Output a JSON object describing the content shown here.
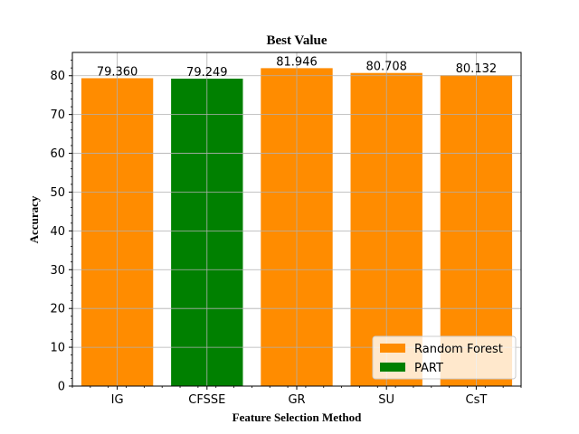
{
  "chart_data": {
    "type": "bar",
    "title": "Best Value",
    "xlabel": "Feature Selection Method",
    "ylabel": "Accuracy",
    "categories": [
      "IG",
      "CFSSE",
      "GR",
      "SU",
      "CsT"
    ],
    "values": [
      79.36,
      79.249,
      81.946,
      80.708,
      80.132
    ],
    "value_labels": [
      "79.360",
      "79.249",
      "81.946",
      "80.708",
      "80.132"
    ],
    "bar_series": [
      "Random Forest",
      "PART",
      "Random Forest",
      "Random Forest",
      "Random Forest"
    ],
    "series": [
      {
        "name": "Random Forest",
        "color": "#ff8c00"
      },
      {
        "name": "PART",
        "color": "#008000"
      }
    ],
    "ylim": [
      0,
      86.0
    ],
    "yticks": [
      0,
      10,
      20,
      30,
      40,
      50,
      60,
      70,
      80
    ],
    "grid": true,
    "legend_position": "lower-right"
  }
}
